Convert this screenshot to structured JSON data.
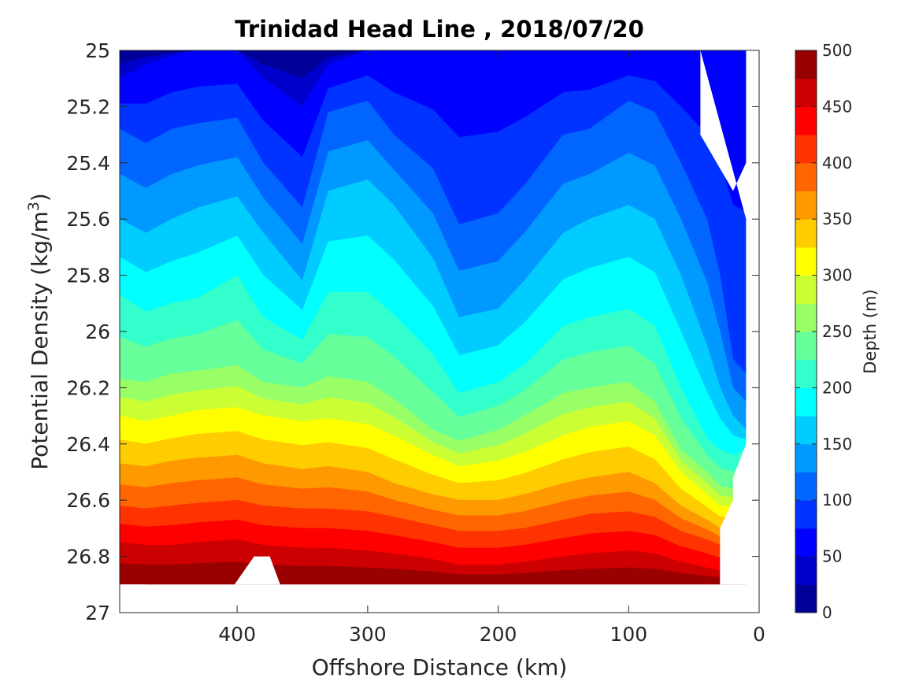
{
  "chart_data": {
    "type": "heatmap",
    "title": "Trinidad Head Line , 2018/07/20",
    "xlabel": "Offshore Distance (km)",
    "ylabel": "Potential Density (kg/m",
    "ylabel_sup": "3",
    "ylabel_close": ")",
    "xlim": [
      490,
      0
    ],
    "ylim": [
      25,
      27
    ],
    "x_reversed": true,
    "y_reversed": true,
    "xticks": [
      400,
      300,
      200,
      100,
      0
    ],
    "yticks": [
      25,
      25.2,
      25.4,
      25.6,
      25.8,
      26,
      26.2,
      26.4,
      26.6,
      26.8,
      27
    ],
    "colorbar": {
      "label": "Depth (m)",
      "range": [
        0,
        500
      ],
      "ticks": [
        0,
        50,
        100,
        150,
        200,
        250,
        300,
        350,
        400,
        450,
        500
      ],
      "levels": 20,
      "colormap": "jet"
    },
    "x": [
      490,
      470,
      450,
      430,
      400,
      380,
      350,
      330,
      300,
      280,
      250,
      230,
      200,
      180,
      150,
      130,
      100,
      80,
      60,
      40,
      30,
      20,
      10
    ],
    "depth_contours": [
      {
        "depth": 50,
        "sigma": [
          25.1,
          25.05,
          25.02,
          25.0,
          25.0,
          25.1,
          25.2,
          25.05,
          25.0,
          25.0,
          25.0,
          25.0,
          25.0,
          25.0,
          25.0,
          25.0,
          25.0,
          25.0,
          25.0,
          25.0,
          25.0,
          25.0,
          25.0
        ]
      },
      {
        "depth": 100,
        "sigma": [
          25.28,
          25.33,
          25.28,
          25.26,
          25.24,
          25.4,
          25.56,
          25.22,
          25.18,
          25.3,
          25.42,
          25.62,
          25.58,
          25.48,
          25.3,
          25.28,
          25.18,
          25.22,
          25.4,
          25.6,
          25.8,
          26.1,
          26.15
        ]
      },
      {
        "depth": 150,
        "sigma": [
          25.6,
          25.65,
          25.6,
          25.56,
          25.52,
          25.65,
          25.82,
          25.5,
          25.46,
          25.55,
          25.74,
          25.95,
          25.92,
          25.82,
          25.65,
          25.6,
          25.55,
          25.6,
          25.8,
          26.05,
          26.2,
          26.3,
          26.35
        ]
      },
      {
        "depth": 200,
        "sigma": [
          25.87,
          25.93,
          25.9,
          25.88,
          25.8,
          25.95,
          26.03,
          25.86,
          25.86,
          25.94,
          26.08,
          26.22,
          26.18,
          26.12,
          25.98,
          25.95,
          25.92,
          25.98,
          26.2,
          26.38,
          26.42,
          26.44,
          26.42
        ]
      },
      {
        "depth": 250,
        "sigma": [
          26.17,
          26.18,
          26.15,
          26.14,
          26.12,
          26.18,
          26.2,
          26.16,
          26.18,
          26.24,
          26.35,
          26.39,
          26.35,
          26.3,
          26.22,
          26.2,
          26.18,
          26.25,
          26.42,
          26.5,
          26.55,
          26.56,
          26.5
        ]
      },
      {
        "depth": 300,
        "sigma": [
          26.3,
          26.32,
          26.3,
          26.28,
          26.27,
          26.3,
          26.32,
          26.31,
          26.33,
          26.37,
          26.44,
          26.48,
          26.46,
          26.43,
          26.37,
          26.34,
          26.32,
          26.37,
          26.5,
          26.58,
          26.62,
          26.62,
          26.6
        ]
      },
      {
        "depth": 350,
        "sigma": [
          26.47,
          26.48,
          26.46,
          26.45,
          26.44,
          26.47,
          26.49,
          26.48,
          26.5,
          26.54,
          26.58,
          26.6,
          26.6,
          26.58,
          26.54,
          26.52,
          26.5,
          26.54,
          26.62,
          26.67,
          26.7,
          26.7,
          26.7
        ]
      },
      {
        "depth": 400,
        "sigma": [
          26.62,
          26.63,
          26.62,
          26.61,
          26.6,
          26.62,
          26.63,
          26.63,
          26.64,
          26.66,
          26.69,
          26.71,
          26.71,
          26.7,
          26.67,
          26.65,
          26.64,
          26.66,
          26.71,
          26.74,
          26.76,
          26.76,
          26.76
        ]
      },
      {
        "depth": 450,
        "sigma": [
          26.75,
          26.76,
          26.76,
          26.75,
          26.74,
          26.76,
          26.77,
          26.77,
          26.78,
          26.79,
          26.81,
          26.83,
          26.83,
          26.82,
          26.8,
          26.79,
          26.78,
          26.79,
          26.82,
          26.84,
          26.85,
          26.85,
          26.85
        ]
      }
    ]
  }
}
